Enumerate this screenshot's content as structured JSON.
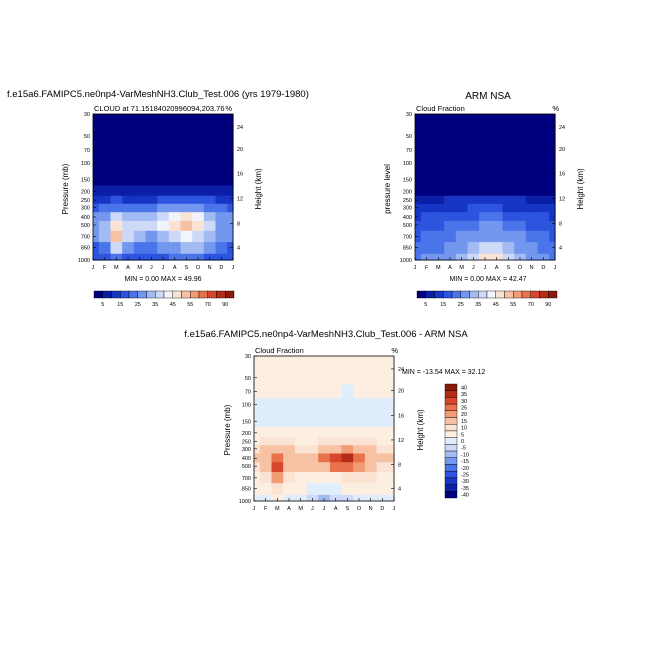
{
  "months": [
    "J",
    "F",
    "M",
    "A",
    "M",
    "J",
    "J",
    "A",
    "S",
    "O",
    "N",
    "D",
    "J"
  ],
  "pressure_ticks": [
    "30",
    "50",
    "70",
    "100",
    "150",
    "200",
    "250",
    "300",
    "400",
    "500",
    "700",
    "850",
    "1000"
  ],
  "height_ticks": [
    "24",
    "20",
    "16",
    "12",
    "8",
    "4"
  ],
  "units": "%",
  "panels": [
    {
      "title": "f.e15a6.FAMIPC5.ne0np4-VarMeshNH3.Club_Test.006 (yrs 1979-1980)",
      "subtitle": "CLOUD at 71.15184020996094,203.76",
      "left_label": "Pressure (mb)",
      "right_label": "Height (km)",
      "stats": "MIN =   0.00 MAX =  49.96"
    },
    {
      "title": "ARM NSA",
      "subtitle": "Cloud Fraction",
      "left_label": "pressure level",
      "right_label": "Height (km)",
      "stats": "MIN =   0.00 MAX =  42.47"
    },
    {
      "title": "f.e15a6.FAMIPC5.ne0np4-VarMeshNH3.Club_Test.006 - ARM NSA",
      "subtitle": "Cloud Fraction",
      "left_label": "Pressure (mb)",
      "right_label": "Height (km)",
      "stats": "MIN = -13.54 MAX =  32.12"
    }
  ],
  "colorbar_cloud": {
    "labels": [
      "5",
      "15",
      "25",
      "35",
      "45",
      "55",
      "70",
      "90"
    ],
    "colors": [
      "#00007f",
      "#0a1ea6",
      "#1735c4",
      "#2d54de",
      "#4a74ea",
      "#7396ee",
      "#a2bbf2",
      "#cdd9f7",
      "#f2f4fb",
      "#fbe3d4",
      "#f7c2a4",
      "#f29c74",
      "#e8724c",
      "#d8462c",
      "#b32c18",
      "#8a1a0a"
    ]
  },
  "colorbar_diff": {
    "labels": [
      "40",
      "35",
      "30",
      "25",
      "20",
      "15",
      "10",
      "5",
      "0",
      "-5",
      "-10",
      "-15",
      "-20",
      "-25",
      "-30",
      "-35",
      "-40"
    ],
    "colors": [
      "#8a1a0a",
      "#b32c18",
      "#d8462c",
      "#e8724c",
      "#f29c74",
      "#f7c2a4",
      "#fbe3d4",
      "#fdeee2",
      "#e0edfb",
      "#cdd9f7",
      "#a2bbf2",
      "#7396ee",
      "#4a74ea",
      "#2d54de",
      "#1735c4",
      "#0a1ea6",
      "#00007f"
    ]
  },
  "chart_data": [
    {
      "type": "heatmap",
      "title": "f.e15a6.FAMIPC5.ne0np4-VarMeshNH3.Club_Test.006 (yrs 1979-1980)",
      "subtitle": "CLOUD at 71.15184020996094,203.76",
      "xlabel": "",
      "ylabel": "Pressure (mb)",
      "y2label": "Height (km)",
      "x": [
        "J",
        "F",
        "M",
        "A",
        "M",
        "J",
        "J",
        "A",
        "S",
        "O",
        "N",
        "D",
        "J"
      ],
      "y": [
        30,
        50,
        70,
        100,
        150,
        200,
        250,
        300,
        400,
        500,
        700,
        850,
        1000
      ],
      "min": 0.0,
      "max": 49.96,
      "values": [
        [
          0,
          0,
          0,
          0,
          0,
          0,
          0,
          0,
          0,
          0,
          0,
          0,
          0
        ],
        [
          0,
          0,
          0,
          0,
          0,
          0,
          0,
          0,
          0,
          0,
          0,
          0,
          0
        ],
        [
          0,
          0,
          0,
          0,
          0,
          0,
          0,
          0,
          0,
          0,
          0,
          0,
          0
        ],
        [
          0,
          0,
          0,
          0,
          0,
          0,
          0,
          0,
          0,
          0,
          0,
          0,
          0
        ],
        [
          1,
          1,
          1,
          1,
          1,
          1,
          1,
          1,
          1,
          1,
          1,
          1,
          1
        ],
        [
          3,
          3,
          3,
          3,
          3,
          3,
          3,
          3,
          3,
          3,
          3,
          3,
          3
        ],
        [
          8,
          9,
          10,
          9,
          8,
          9,
          10,
          11,
          12,
          11,
          10,
          9,
          8
        ],
        [
          14,
          16,
          18,
          17,
          16,
          18,
          20,
          22,
          24,
          22,
          18,
          16,
          14
        ],
        [
          20,
          24,
          30,
          28,
          26,
          28,
          32,
          38,
          40,
          36,
          28,
          22,
          20
        ],
        [
          22,
          28,
          40,
          34,
          30,
          30,
          36,
          44,
          48,
          42,
          32,
          24,
          22
        ],
        [
          20,
          26,
          46,
          30,
          26,
          24,
          28,
          32,
          36,
          34,
          28,
          22,
          20
        ],
        [
          14,
          18,
          30,
          22,
          18,
          16,
          20,
          24,
          28,
          26,
          20,
          16,
          14
        ],
        [
          10,
          12,
          18,
          14,
          12,
          10,
          12,
          16,
          18,
          16,
          14,
          12,
          10
        ]
      ]
    },
    {
      "type": "heatmap",
      "title": "ARM NSA",
      "subtitle": "Cloud Fraction",
      "xlabel": "",
      "ylabel": "pressure level",
      "y2label": "Height (km)",
      "x": [
        "J",
        "F",
        "M",
        "A",
        "M",
        "J",
        "J",
        "A",
        "S",
        "O",
        "N",
        "D",
        "J"
      ],
      "y": [
        30,
        50,
        70,
        100,
        150,
        200,
        250,
        300,
        400,
        500,
        700,
        850,
        1000
      ],
      "min": 0.0,
      "max": 42.47,
      "values": [
        [
          0,
          0,
          0,
          0,
          0,
          0,
          0,
          0,
          0,
          0,
          0,
          0,
          0
        ],
        [
          0,
          0,
          0,
          0,
          0,
          0,
          0,
          0,
          0,
          0,
          0,
          0,
          0
        ],
        [
          0,
          0,
          0,
          0,
          0,
          0,
          0,
          0,
          0,
          0,
          0,
          0,
          0
        ],
        [
          0,
          0,
          0,
          0,
          0,
          0,
          0,
          0,
          0,
          0,
          0,
          0,
          0
        ],
        [
          0,
          0,
          0,
          0,
          0,
          0,
          0,
          0,
          0,
          0,
          0,
          0,
          0
        ],
        [
          2,
          2,
          2,
          2,
          2,
          2,
          2,
          2,
          2,
          2,
          2,
          2,
          2
        ],
        [
          4,
          4,
          4,
          5,
          5,
          6,
          6,
          6,
          5,
          5,
          4,
          4,
          4
        ],
        [
          6,
          7,
          7,
          8,
          9,
          10,
          10,
          10,
          9,
          8,
          7,
          6,
          6
        ],
        [
          9,
          10,
          11,
          12,
          13,
          14,
          16,
          15,
          14,
          12,
          11,
          10,
          9
        ],
        [
          12,
          13,
          14,
          16,
          17,
          18,
          20,
          20,
          18,
          16,
          14,
          13,
          12
        ],
        [
          14,
          15,
          17,
          18,
          20,
          22,
          24,
          24,
          22,
          20,
          18,
          16,
          14
        ],
        [
          16,
          17,
          18,
          20,
          22,
          26,
          30,
          32,
          28,
          24,
          20,
          18,
          16
        ],
        [
          18,
          20,
          22,
          24,
          28,
          34,
          42,
          40,
          34,
          28,
          22,
          20,
          18
        ]
      ]
    },
    {
      "type": "heatmap",
      "title": "f.e15a6.FAMIPC5.ne0np4-VarMeshNH3.Club_Test.006 - ARM NSA",
      "subtitle": "Cloud Fraction",
      "xlabel": "",
      "ylabel": "Pressure (mb)",
      "y2label": "Height (km)",
      "x": [
        "J",
        "F",
        "M",
        "A",
        "M",
        "J",
        "J",
        "A",
        "S",
        "O",
        "N",
        "D",
        "J"
      ],
      "y": [
        30,
        50,
        70,
        100,
        150,
        200,
        250,
        300,
        400,
        500,
        700,
        850,
        1000
      ],
      "min": -13.54,
      "max": 32.12,
      "values": [
        [
          2,
          2,
          2,
          2,
          2,
          2,
          2,
          2,
          2,
          2,
          2,
          2,
          2
        ],
        [
          2,
          2,
          2,
          2,
          2,
          2,
          2,
          2,
          1,
          2,
          2,
          2,
          2
        ],
        [
          2,
          2,
          2,
          2,
          2,
          2,
          2,
          1,
          -1,
          1,
          2,
          2,
          2
        ],
        [
          -2,
          -2,
          -2,
          -3,
          -3,
          -3,
          -3,
          -3,
          -3,
          -3,
          -2,
          -2,
          -2
        ],
        [
          -2,
          -2,
          -2,
          -2,
          -2,
          -2,
          -2,
          -2,
          -2,
          -2,
          -2,
          -2,
          -2
        ],
        [
          2,
          2,
          2,
          2,
          2,
          2,
          2,
          2,
          2,
          2,
          2,
          2,
          2
        ],
        [
          4,
          5,
          6,
          5,
          4,
          4,
          5,
          6,
          8,
          6,
          5,
          4,
          4
        ],
        [
          8,
          10,
          14,
          10,
          9,
          9,
          11,
          14,
          18,
          14,
          10,
          8,
          8
        ],
        [
          10,
          12,
          24,
          14,
          11,
          14,
          20,
          28,
          32,
          22,
          14,
          10,
          10
        ],
        [
          8,
          10,
          26,
          14,
          10,
          11,
          14,
          20,
          24,
          18,
          12,
          8,
          8
        ],
        [
          4,
          6,
          18,
          6,
          4,
          2,
          2,
          4,
          6,
          6,
          6,
          4,
          4
        ],
        [
          2,
          2,
          6,
          2,
          0,
          -2,
          -3,
          -2,
          0,
          0,
          2,
          2,
          2
        ],
        [
          -2,
          -2,
          4,
          -2,
          -4,
          -8,
          -13,
          -10,
          -8,
          -4,
          -2,
          -2,
          -2
        ]
      ]
    }
  ]
}
